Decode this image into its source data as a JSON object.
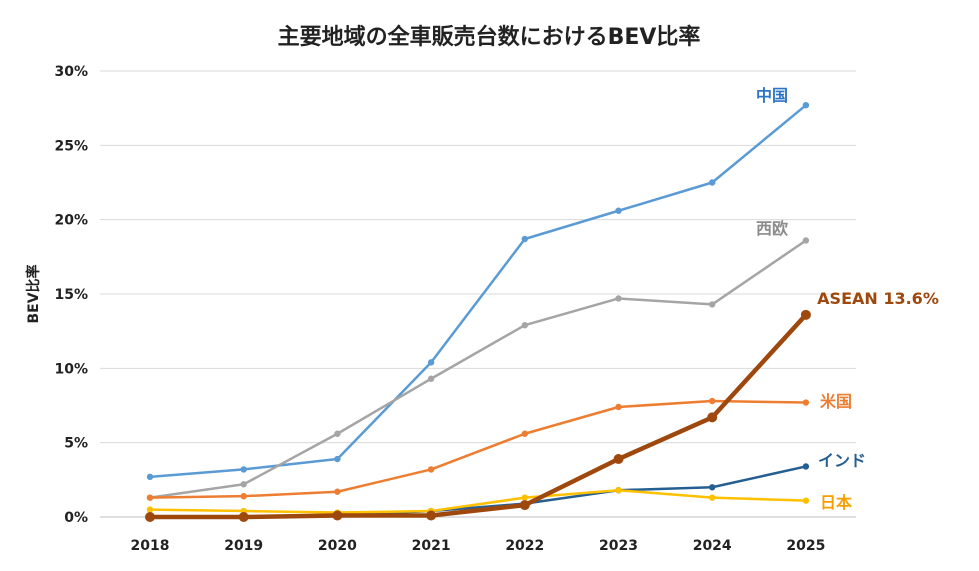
{
  "chart_data": {
    "type": "line",
    "title": "主要地域の全車販売台数におけるBEV比率",
    "xlabel": "",
    "ylabel": "BEV比率",
    "x": [
      "2018",
      "2019",
      "2020",
      "2021",
      "2022",
      "2023",
      "2024",
      "2025"
    ],
    "yticks": [
      "0%",
      "5%",
      "10%",
      "15%",
      "20%",
      "25%",
      "30%"
    ],
    "ylim": [
      0,
      30
    ],
    "grid": true,
    "series": [
      {
        "name": "中国",
        "label": "中国",
        "color": "#5b9bd5",
        "label_color": "#2e75c6",
        "width": 2.5,
        "values": [
          2.7,
          3.2,
          3.9,
          10.4,
          18.7,
          20.6,
          22.5,
          27.7
        ]
      },
      {
        "name": "西欧",
        "label": "西欧",
        "color": "#a5a5a5",
        "label_color": "#8c8c8c",
        "width": 2.5,
        "values": [
          1.3,
          2.2,
          5.6,
          9.3,
          12.9,
          14.7,
          14.3,
          18.6
        ]
      },
      {
        "name": "米国",
        "label": "米国",
        "color": "#ed7d31",
        "label_color": "#ed7d31",
        "width": 2.5,
        "values": [
          1.3,
          1.4,
          1.7,
          3.2,
          5.6,
          7.4,
          7.8,
          7.7
        ]
      },
      {
        "name": "インド",
        "label": "インド",
        "color": "#255e91",
        "label_color": "#255e91",
        "width": 2.5,
        "values": [
          0.0,
          0.0,
          0.1,
          0.4,
          0.9,
          1.8,
          2.0,
          3.4
        ]
      },
      {
        "name": "日本",
        "label": "日本",
        "color": "#ffc000",
        "label_color": "#f5a000",
        "width": 2.5,
        "values": [
          0.5,
          0.4,
          0.3,
          0.4,
          1.3,
          1.8,
          1.3,
          1.1
        ]
      },
      {
        "name": "ASEAN",
        "label": "ASEAN 13.6%",
        "color": "#9e480e",
        "label_color": "#9e480e",
        "width": 4.5,
        "values": [
          0.0,
          0.0,
          0.1,
          0.1,
          0.8,
          3.9,
          6.7,
          13.6
        ]
      }
    ]
  }
}
